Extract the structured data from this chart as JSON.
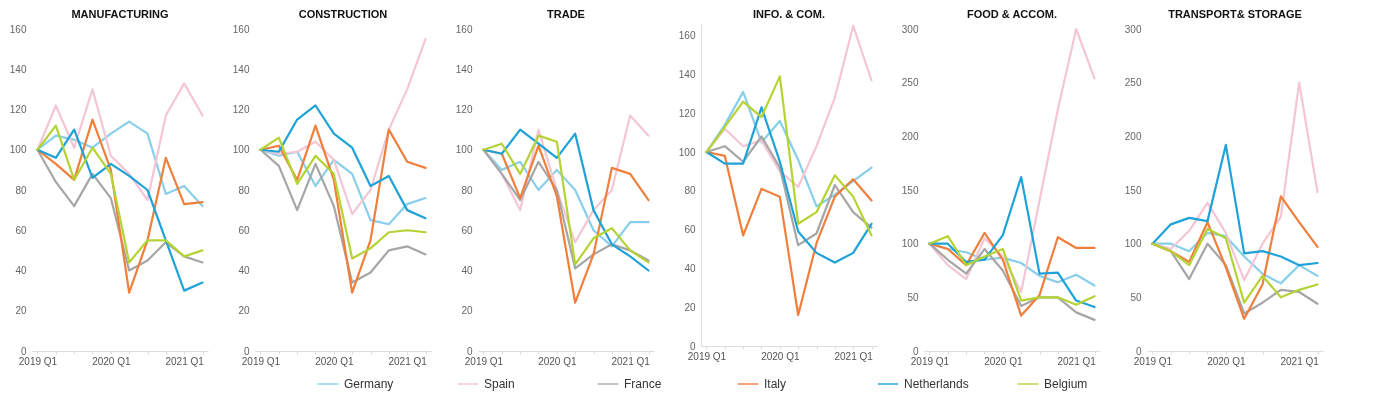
{
  "chart_data": [
    {
      "type": "line",
      "title": "MANUFACTURING",
      "categories": [
        "2019 Q1",
        null,
        null,
        null,
        "2020 Q1",
        null,
        null,
        null,
        "2021 Q1",
        null
      ],
      "ylim": [
        0,
        160
      ],
      "yticks": [
        0,
        20,
        40,
        60,
        80,
        100,
        120,
        140,
        160
      ],
      "legend": "bottom",
      "series": [
        {
          "name": "Germany",
          "color": "#87cfea",
          "values": [
            100,
            107,
            105,
            101,
            108,
            114,
            108,
            78,
            82,
            72
          ]
        },
        {
          "name": "Spain",
          "color": "#f4c6d4",
          "values": [
            100,
            122,
            101,
            130,
            97,
            88,
            75,
            117,
            133,
            117
          ]
        },
        {
          "name": "France",
          "color": "#a6a6a6",
          "values": [
            100,
            84,
            72,
            88,
            76,
            40,
            45,
            54,
            47,
            44
          ]
        },
        {
          "name": "Italy",
          "color": "#f07f3c",
          "values": [
            100,
            93,
            85,
            115,
            90,
            29,
            55,
            96,
            73,
            74
          ]
        },
        {
          "name": "Netherlands",
          "color": "#1fa2d8",
          "values": [
            100,
            96,
            110,
            86,
            93,
            87,
            80,
            55,
            30,
            34
          ]
        },
        {
          "name": "Belgium",
          "color": "#b4d334",
          "values": [
            100,
            112,
            85,
            101,
            88,
            44,
            55,
            55,
            47,
            50
          ]
        }
      ]
    },
    {
      "type": "line",
      "title": "CONSTRUCTION",
      "categories": [
        "2019 Q1",
        null,
        null,
        null,
        "2020 Q1",
        null,
        null,
        null,
        "2021 Q1",
        null
      ],
      "ylim": [
        0,
        160
      ],
      "yticks": [
        0,
        20,
        40,
        60,
        80,
        100,
        120,
        140,
        160
      ],
      "legend": "bottom",
      "series": [
        {
          "name": "Germany",
          "color": "#87cfea",
          "values": [
            100,
            97,
            99,
            82,
            95,
            88,
            65,
            63,
            73,
            76
          ]
        },
        {
          "name": "Spain",
          "color": "#f4c6d4",
          "values": [
            100,
            98,
            99,
            104,
            95,
            68,
            80,
            110,
            130,
            155
          ]
        },
        {
          "name": "France",
          "color": "#a6a6a6",
          "values": [
            100,
            92,
            70,
            93,
            72,
            34,
            39,
            50,
            52,
            48
          ]
        },
        {
          "name": "Italy",
          "color": "#f07f3c",
          "values": [
            100,
            102,
            85,
            112,
            85,
            29,
            55,
            110,
            94,
            91
          ]
        },
        {
          "name": "Netherlands",
          "color": "#1fa2d8",
          "values": [
            100,
            99,
            115,
            122,
            108,
            101,
            82,
            87,
            70,
            66
          ]
        },
        {
          "name": "Belgium",
          "color": "#b4d334",
          "values": [
            100,
            106,
            83,
            97,
            88,
            46,
            51,
            59,
            60,
            59
          ]
        }
      ]
    },
    {
      "type": "line",
      "title": "TRADE",
      "categories": [
        "2019 Q1",
        null,
        null,
        null,
        "2020 Q1",
        null,
        null,
        null,
        "2021 Q1",
        null
      ],
      "ylim": [
        0,
        160
      ],
      "yticks": [
        0,
        20,
        40,
        60,
        80,
        100,
        120,
        140,
        160
      ],
      "legend": "bottom",
      "series": [
        {
          "name": "Germany",
          "color": "#87cfea",
          "values": [
            100,
            90,
            94,
            80,
            90,
            80,
            60,
            52,
            64,
            64
          ]
        },
        {
          "name": "Spain",
          "color": "#f4c6d4",
          "values": [
            100,
            88,
            70,
            110,
            80,
            54,
            70,
            80,
            117,
            107
          ]
        },
        {
          "name": "France",
          "color": "#a6a6a6",
          "values": [
            100,
            88,
            75,
            94,
            80,
            41,
            48,
            53,
            50,
            45
          ]
        },
        {
          "name": "Italy",
          "color": "#f07f3c",
          "values": [
            100,
            98,
            76,
            102,
            77,
            24,
            48,
            91,
            88,
            75
          ]
        },
        {
          "name": "Netherlands",
          "color": "#1fa2d8",
          "values": [
            100,
            98,
            110,
            103,
            96,
            108,
            70,
            53,
            47,
            40
          ]
        },
        {
          "name": "Belgium",
          "color": "#b4d334",
          "values": [
            100,
            103,
            88,
            107,
            104,
            43,
            56,
            61,
            50,
            44
          ]
        }
      ]
    },
    {
      "type": "line",
      "title": "INFO. & COM.",
      "categories": [
        "2019 Q1",
        null,
        null,
        null,
        "2020 Q1",
        null,
        null,
        null,
        "2021 Q1",
        null
      ],
      "ylim": [
        0,
        166
      ],
      "yticks": [
        0,
        20,
        40,
        60,
        80,
        100,
        120,
        140,
        160
      ],
      "legend": "bottom",
      "series": [
        {
          "name": "Germany",
          "color": "#87cfea",
          "values": [
            100,
            114,
            131,
            105,
            116,
            96,
            72,
            78,
            85,
            92
          ]
        },
        {
          "name": "Spain",
          "color": "#f4c6d4",
          "values": [
            100,
            112,
            103,
            106,
            90,
            82,
            103,
            128,
            165,
            137
          ]
        },
        {
          "name": "France",
          "color": "#a6a6a6",
          "values": [
            100,
            103,
            95,
            108,
            92,
            52,
            58,
            83,
            69,
            61
          ]
        },
        {
          "name": "Italy",
          "color": "#f07f3c",
          "values": [
            100,
            98,
            57,
            81,
            77,
            16,
            53,
            77,
            86,
            75
          ]
        },
        {
          "name": "Netherlands",
          "color": "#1fa2d8",
          "values": [
            100,
            94,
            94,
            123,
            95,
            59,
            48,
            43,
            48,
            63
          ]
        },
        {
          "name": "Belgium",
          "color": "#b4d334",
          "values": [
            100,
            113,
            126,
            118,
            139,
            63,
            69,
            88,
            77,
            57
          ]
        }
      ]
    },
    {
      "type": "line",
      "title": "FOOD & ACCOM.",
      "categories": [
        "2019 Q1",
        null,
        null,
        null,
        "2020 Q1",
        null,
        null,
        null,
        "2021 Q1",
        null
      ],
      "ylim": [
        0,
        300
      ],
      "yticks": [
        0,
        50,
        100,
        150,
        200,
        250,
        300
      ],
      "legend": "bottom",
      "series": [
        {
          "name": "Germany",
          "color": "#87cfea",
          "values": [
            100,
            95,
            92,
            85,
            87,
            82,
            70,
            64,
            71,
            61
          ]
        },
        {
          "name": "Spain",
          "color": "#f4c6d4",
          "values": [
            100,
            80,
            67,
            105,
            88,
            55,
            140,
            225,
            300,
            254
          ]
        },
        {
          "name": "France",
          "color": "#a6a6a6",
          "values": [
            100,
            85,
            72,
            95,
            75,
            42,
            50,
            50,
            36,
            29
          ]
        },
        {
          "name": "Italy",
          "color": "#f07f3c",
          "values": [
            100,
            95,
            80,
            110,
            85,
            33,
            52,
            106,
            96,
            96
          ]
        },
        {
          "name": "Netherlands",
          "color": "#1fa2d8",
          "values": [
            100,
            100,
            83,
            85,
            108,
            162,
            72,
            73,
            47,
            41
          ]
        },
        {
          "name": "Belgium",
          "color": "#b4d334",
          "values": [
            100,
            107,
            80,
            88,
            95,
            47,
            50,
            50,
            43,
            51
          ]
        }
      ]
    },
    {
      "type": "line",
      "title": "TRANSPORT& STORAGE",
      "categories": [
        "2019 Q1",
        null,
        null,
        null,
        "2020 Q1",
        null,
        null,
        null,
        "2021 Q1",
        null
      ],
      "ylim": [
        0,
        300
      ],
      "yticks": [
        0,
        50,
        100,
        150,
        200,
        250,
        300
      ],
      "legend": "bottom",
      "series": [
        {
          "name": "Germany",
          "color": "#87cfea",
          "values": [
            100,
            100,
            93,
            110,
            107,
            88,
            72,
            63,
            80,
            70
          ]
        },
        {
          "name": "Spain",
          "color": "#f4c6d4",
          "values": [
            100,
            95,
            112,
            138,
            110,
            66,
            100,
            125,
            250,
            148
          ]
        },
        {
          "name": "France",
          "color": "#a6a6a6",
          "values": [
            100,
            93,
            67,
            100,
            80,
            35,
            45,
            57,
            55,
            44
          ]
        },
        {
          "name": "Italy",
          "color": "#f07f3c",
          "values": [
            100,
            93,
            83,
            120,
            78,
            30,
            62,
            144,
            120,
            97
          ]
        },
        {
          "name": "Netherlands",
          "color": "#1fa2d8",
          "values": [
            100,
            118,
            124,
            121,
            192,
            91,
            93,
            88,
            80,
            82
          ]
        },
        {
          "name": "Belgium",
          "color": "#b4d334",
          "values": [
            100,
            93,
            80,
            114,
            105,
            45,
            70,
            50,
            57,
            62
          ]
        }
      ]
    }
  ]
}
